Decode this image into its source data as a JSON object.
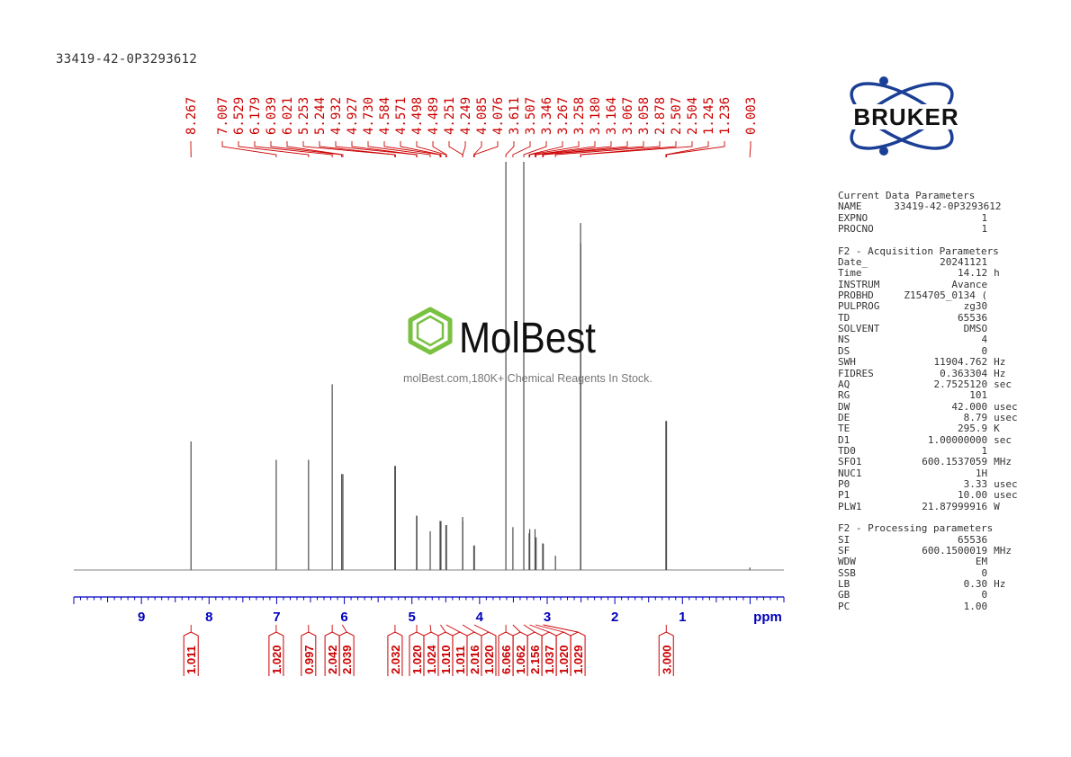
{
  "sample_id": "33419-42-0P3293612",
  "logo_text": "BRUKER",
  "watermark": {
    "brand": "MolBest",
    "tagline": "molBest.com,180K+ Chemical Reagents In Stock."
  },
  "colors": {
    "spectrum": "#808080",
    "annotation": "#cc0000",
    "axis": "#0000bb",
    "logo_blue": "#1c3f96",
    "logo_text": "#111111",
    "watermark_green": "#7ac142"
  },
  "parameters": [
    {
      "title": "Current Data Parameters",
      "rows": [
        {
          "name": "NAME",
          "value": "33419-42-0P3293612",
          "unit": ""
        },
        {
          "name": "EXPNO",
          "value": "1",
          "unit": ""
        },
        {
          "name": "PROCNO",
          "value": "1",
          "unit": ""
        }
      ]
    },
    {
      "title": "F2 - Acquisition Parameters",
      "rows": [
        {
          "name": "Date_",
          "value": "20241121",
          "unit": ""
        },
        {
          "name": "Time",
          "value": "14.12",
          "unit": "h"
        },
        {
          "name": "INSTRUM",
          "value": "Avance",
          "unit": ""
        },
        {
          "name": "PROBHD",
          "value": "Z154705_0134 (",
          "unit": ""
        },
        {
          "name": "PULPROG",
          "value": "zg30",
          "unit": ""
        },
        {
          "name": "TD",
          "value": "65536",
          "unit": ""
        },
        {
          "name": "SOLVENT",
          "value": "DMSO",
          "unit": ""
        },
        {
          "name": "NS",
          "value": "4",
          "unit": ""
        },
        {
          "name": "DS",
          "value": "0",
          "unit": ""
        },
        {
          "name": "SWH",
          "value": "11904.762",
          "unit": "Hz"
        },
        {
          "name": "FIDRES",
          "value": "0.363304",
          "unit": "Hz"
        },
        {
          "name": "AQ",
          "value": "2.7525120",
          "unit": "sec"
        },
        {
          "name": "RG",
          "value": "101",
          "unit": ""
        },
        {
          "name": "DW",
          "value": "42.000",
          "unit": "usec"
        },
        {
          "name": "DE",
          "value": "8.79",
          "unit": "usec"
        },
        {
          "name": "TE",
          "value": "295.9",
          "unit": "K"
        },
        {
          "name": "D1",
          "value": "1.00000000",
          "unit": "sec"
        },
        {
          "name": "TD0",
          "value": "1",
          "unit": ""
        },
        {
          "name": "SFO1",
          "value": "600.1537059",
          "unit": "MHz"
        },
        {
          "name": "NUC1",
          "value": "1H",
          "unit": ""
        },
        {
          "name": "P0",
          "value": "3.33",
          "unit": "usec"
        },
        {
          "name": "P1",
          "value": "10.00",
          "unit": "usec"
        },
        {
          "name": "PLW1",
          "value": "21.87999916",
          "unit": "W"
        }
      ]
    },
    {
      "title": "F2 - Processing parameters",
      "rows": [
        {
          "name": "SI",
          "value": "65536",
          "unit": ""
        },
        {
          "name": "SF",
          "value": "600.1500019",
          "unit": "MHz"
        },
        {
          "name": "WDW",
          "value": "EM",
          "unit": ""
        },
        {
          "name": "SSB",
          "value": "0",
          "unit": ""
        },
        {
          "name": "LB",
          "value": "0.30",
          "unit": "Hz"
        },
        {
          "name": "GB",
          "value": "0",
          "unit": ""
        },
        {
          "name": "PC",
          "value": "1.00",
          "unit": ""
        }
      ]
    }
  ],
  "chart_data": {
    "type": "line",
    "xlabel": "ppm",
    "xlim": [
      10.0,
      -0.5
    ],
    "x_ticks": [
      9,
      8,
      7,
      6,
      5,
      4,
      3,
      2,
      1
    ],
    "peak_labels": [
      "8.267",
      "7.007",
      "6.529",
      "6.179",
      "6.039",
      "6.021",
      "5.253",
      "5.244",
      "4.932",
      "4.927",
      "4.730",
      "4.584",
      "4.571",
      "4.498",
      "4.489",
      "4.251",
      "4.249",
      "4.085",
      "4.076",
      "3.611",
      "3.507",
      "3.346",
      "3.267",
      "3.258",
      "3.180",
      "3.164",
      "3.067",
      "3.058",
      "2.878",
      "2.507",
      "2.504",
      "1.245",
      "1.236",
      "0.003"
    ],
    "peaks": [
      {
        "ppm": 8.267,
        "height": 0.315
      },
      {
        "ppm": 7.007,
        "height": 0.27
      },
      {
        "ppm": 6.529,
        "height": 0.27
      },
      {
        "ppm": 6.179,
        "height": 0.455
      },
      {
        "ppm": 6.039,
        "height": 0.235
      },
      {
        "ppm": 6.021,
        "height": 0.235
      },
      {
        "ppm": 5.253,
        "height": 0.255
      },
      {
        "ppm": 5.244,
        "height": 0.255
      },
      {
        "ppm": 4.932,
        "height": 0.133
      },
      {
        "ppm": 4.927,
        "height": 0.133
      },
      {
        "ppm": 4.73,
        "height": 0.095
      },
      {
        "ppm": 4.584,
        "height": 0.12
      },
      {
        "ppm": 4.571,
        "height": 0.12
      },
      {
        "ppm": 4.498,
        "height": 0.11
      },
      {
        "ppm": 4.489,
        "height": 0.11
      },
      {
        "ppm": 4.251,
        "height": 0.13
      },
      {
        "ppm": 4.249,
        "height": 0.12
      },
      {
        "ppm": 4.085,
        "height": 0.06
      },
      {
        "ppm": 4.076,
        "height": 0.06
      },
      {
        "ppm": 3.611,
        "height": 1.0
      },
      {
        "ppm": 3.507,
        "height": 0.105
      },
      {
        "ppm": 3.346,
        "height": 1.0
      },
      {
        "ppm": 3.267,
        "height": 0.09
      },
      {
        "ppm": 3.258,
        "height": 0.1
      },
      {
        "ppm": 3.18,
        "height": 0.1
      },
      {
        "ppm": 3.164,
        "height": 0.08
      },
      {
        "ppm": 3.067,
        "height": 0.065
      },
      {
        "ppm": 3.058,
        "height": 0.065
      },
      {
        "ppm": 2.878,
        "height": 0.035
      },
      {
        "ppm": 2.507,
        "height": 0.85
      },
      {
        "ppm": 2.504,
        "height": 0.8
      },
      {
        "ppm": 1.245,
        "height": 0.365
      },
      {
        "ppm": 1.236,
        "height": 0.365
      },
      {
        "ppm": 0.003,
        "height": 0.006
      }
    ],
    "integrals": [
      {
        "ppm": 8.267,
        "value": "1.011"
      },
      {
        "ppm": 7.007,
        "value": "1.020"
      },
      {
        "ppm": 6.529,
        "value": "0.997"
      },
      {
        "ppm": 6.179,
        "value": "2.042"
      },
      {
        "ppm": 6.03,
        "value": "2.039"
      },
      {
        "ppm": 5.25,
        "value": "2.032"
      },
      {
        "ppm": 4.93,
        "value": "1.020"
      },
      {
        "ppm": 4.73,
        "value": "1.024"
      },
      {
        "ppm": 4.578,
        "value": "1.010"
      },
      {
        "ppm": 4.493,
        "value": "1.011"
      },
      {
        "ppm": 4.25,
        "value": "2.016"
      },
      {
        "ppm": 4.08,
        "value": "1.020"
      },
      {
        "ppm": 3.611,
        "value": "6.066"
      },
      {
        "ppm": 3.507,
        "value": "1.062"
      },
      {
        "ppm": 3.346,
        "value": "2.156"
      },
      {
        "ppm": 3.26,
        "value": "1.037"
      },
      {
        "ppm": 3.172,
        "value": "1.020"
      },
      {
        "ppm": 3.06,
        "value": "1.029"
      },
      {
        "ppm": 1.24,
        "value": "3.000"
      }
    ]
  }
}
